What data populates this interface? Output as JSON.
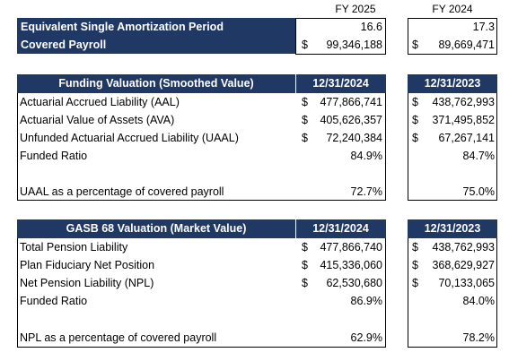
{
  "top": {
    "headers": [
      "FY 2025",
      "FY 2024"
    ],
    "rows": [
      {
        "label": "Equivalent Single Amortization Period",
        "v1": "16.6",
        "v2": "17.3",
        "d1": "",
        "d2": ""
      },
      {
        "label": "Covered Payroll",
        "v1": "99,346,188",
        "v2": "89,669,471",
        "d1": "$",
        "d2": "$"
      }
    ]
  },
  "funding": {
    "title": "Funding Valuation (Smoothed Value)",
    "col1": "12/31/2024",
    "col2": "12/31/2023",
    "rows": [
      {
        "label": "Actuarial Accrued Liability (AAL)",
        "d1": "$",
        "v1": "477,866,741",
        "d2": "$",
        "v2": "438,762,993"
      },
      {
        "label": "Actuarial Value of Assets (AVA)",
        "d1": "$",
        "v1": "405,626,357",
        "d2": "$",
        "v2": "371,495,852"
      },
      {
        "label": "Unfunded Actuarial Accrued Liability (UAAL)",
        "d1": "$",
        "v1": "72,240,384",
        "d2": "$",
        "v2": "67,267,141"
      },
      {
        "label": "Funded Ratio",
        "d1": "",
        "v1": "84.9%",
        "d2": "",
        "v2": "84.7%"
      },
      {
        "label": "",
        "d1": "",
        "v1": "",
        "d2": "",
        "v2": ""
      },
      {
        "label": "UAAL as a percentage of covered payroll",
        "d1": "",
        "v1": "72.7%",
        "d2": "",
        "v2": "75.0%"
      }
    ]
  },
  "gasb": {
    "title": "GASB 68 Valuation (Market Value)",
    "col1": "12/31/2024",
    "col2": "12/31/2023",
    "rows": [
      {
        "label": "Total Pension Liability",
        "d1": "$",
        "v1": "477,866,740",
        "d2": "$",
        "v2": "438,762,993"
      },
      {
        "label": "Plan Fiduciary Net Position",
        "d1": "$",
        "v1": "415,336,060",
        "d2": "$",
        "v2": "368,629,927"
      },
      {
        "label": "Net Pension Liability (NPL)",
        "d1": "$",
        "v1": "62,530,680",
        "d2": "$",
        "v2": "70,133,065"
      },
      {
        "label": "Funded Ratio",
        "d1": "",
        "v1": "86.9%",
        "d2": "",
        "v2": "84.0%"
      },
      {
        "label": "",
        "d1": "",
        "v1": "",
        "d2": "",
        "v2": ""
      },
      {
        "label": "NPL as a percentage of covered payroll",
        "d1": "",
        "v1": "62.9%",
        "d2": "",
        "v2": "78.2%"
      }
    ]
  },
  "colors": {
    "header_bg": "#1f3864",
    "header_text": "#ffffff"
  }
}
